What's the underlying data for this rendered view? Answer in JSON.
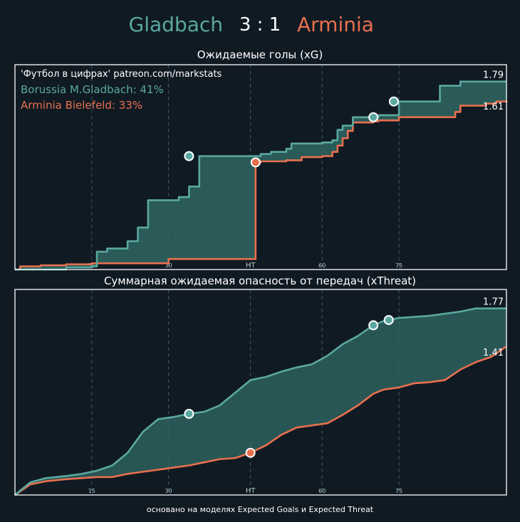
{
  "header": {
    "home_team": "Gladbach",
    "score": "3 : 1",
    "away_team": "Arminia"
  },
  "colors": {
    "background": "#101a23",
    "home": "#5ba8a0",
    "away": "#e8704f",
    "fill": "#2f6762",
    "grid": "#3d5964",
    "frame": "#ffffff"
  },
  "footer": "основано на моделях Expected Goals и Expected Threat",
  "chart_data": [
    {
      "type": "area",
      "title": "Ожидаемые голы (xG)",
      "source_note": "'Футбол в цифрах' patreon.com/markstats",
      "legend": {
        "home": "Borussia M.Gladbach: 41%",
        "away": "Arminia Bielefeld: 33%"
      },
      "xlim": [
        0,
        96
      ],
      "ylim": [
        0,
        1.95
      ],
      "xticks": [
        {
          "value": 15,
          "label": "15"
        },
        {
          "value": 30,
          "label": "30"
        },
        {
          "value": 46,
          "label": "HT"
        },
        {
          "value": 60,
          "label": "60"
        },
        {
          "value": 75,
          "label": "75"
        }
      ],
      "end_labels": {
        "home": "1.79",
        "away": "1.61"
      },
      "step": true,
      "series": [
        {
          "key": "home",
          "x": [
            0,
            10,
            15,
            16,
            17,
            18,
            19,
            22,
            23,
            24,
            25,
            26,
            31,
            32,
            33,
            34,
            35,
            36,
            40,
            45,
            48,
            50,
            53,
            54,
            60,
            62,
            63,
            64,
            65,
            66,
            70,
            71,
            75,
            76,
            82,
            83,
            86,
            87,
            88,
            96
          ],
          "y": [
            0,
            0.02,
            0.03,
            0.17,
            0.17,
            0.2,
            0.2,
            0.27,
            0.27,
            0.4,
            0.4,
            0.66,
            0.66,
            0.69,
            0.69,
            0.79,
            0.79,
            1.08,
            1.08,
            1.08,
            1.1,
            1.12,
            1.15,
            1.2,
            1.21,
            1.23,
            1.33,
            1.37,
            1.37,
            1.45,
            1.45,
            1.47,
            1.6,
            1.6,
            1.6,
            1.75,
            1.75,
            1.79,
            1.79,
            1.79
          ]
        },
        {
          "key": "away",
          "x": [
            0,
            1,
            5,
            10,
            14,
            15,
            30,
            44,
            46,
            47,
            48,
            52,
            53,
            56,
            60,
            62,
            63,
            64,
            65,
            66,
            70,
            71,
            75,
            80,
            85,
            86,
            87,
            92,
            94,
            96
          ],
          "y": [
            0,
            0.03,
            0.04,
            0.05,
            0.05,
            0.06,
            0.1,
            0.1,
            0.1,
            1.02,
            1.03,
            1.03,
            1.04,
            1.07,
            1.08,
            1.12,
            1.18,
            1.25,
            1.32,
            1.4,
            1.41,
            1.42,
            1.45,
            1.45,
            1.45,
            1.5,
            1.56,
            1.58,
            1.6,
            1.61
          ]
        }
      ],
      "goals": [
        {
          "team": "home",
          "x": 34,
          "y": 1.08
        },
        {
          "team": "away",
          "x": 47,
          "y": 1.02
        },
        {
          "team": "home",
          "x": 70,
          "y": 1.45
        },
        {
          "team": "home",
          "x": 74,
          "y": 1.6
        }
      ]
    },
    {
      "type": "area",
      "title": "Суммарная ожидаемая опасность от передач (xThreat)",
      "xlim": [
        0,
        96
      ],
      "ylim": [
        0,
        1.95
      ],
      "xticks": [
        {
          "value": 15,
          "label": "15"
        },
        {
          "value": 30,
          "label": "30"
        },
        {
          "value": 46,
          "label": "HT"
        },
        {
          "value": 60,
          "label": "60"
        },
        {
          "value": 75,
          "label": "75"
        }
      ],
      "end_labels": {
        "home": "1.77",
        "away": "1.41"
      },
      "step": false,
      "series": [
        {
          "key": "home",
          "x": [
            0,
            3,
            6,
            10,
            13,
            16,
            19,
            22,
            25,
            28,
            31,
            34,
            37,
            40,
            43,
            46,
            49,
            52,
            55,
            58,
            61,
            64,
            67,
            70,
            72,
            75,
            78,
            81,
            84,
            87,
            90,
            93,
            96
          ],
          "y": [
            0,
            0.12,
            0.16,
            0.18,
            0.2,
            0.23,
            0.28,
            0.4,
            0.6,
            0.72,
            0.74,
            0.77,
            0.79,
            0.85,
            0.97,
            1.09,
            1.12,
            1.17,
            1.21,
            1.24,
            1.32,
            1.43,
            1.51,
            1.61,
            1.65,
            1.68,
            1.69,
            1.7,
            1.72,
            1.74,
            1.77,
            1.77,
            1.77
          ]
        },
        {
          "key": "away",
          "x": [
            0,
            3,
            6,
            10,
            13,
            16,
            19,
            22,
            25,
            28,
            31,
            34,
            37,
            40,
            43,
            46,
            49,
            52,
            55,
            58,
            61,
            64,
            67,
            70,
            72,
            75,
            78,
            81,
            84,
            87,
            90,
            93,
            96
          ],
          "y": [
            0,
            0.1,
            0.13,
            0.15,
            0.16,
            0.17,
            0.17,
            0.2,
            0.22,
            0.24,
            0.26,
            0.28,
            0.31,
            0.34,
            0.35,
            0.4,
            0.47,
            0.57,
            0.64,
            0.66,
            0.68,
            0.76,
            0.85,
            0.96,
            1.0,
            1.02,
            1.06,
            1.07,
            1.09,
            1.19,
            1.26,
            1.31,
            1.41
          ]
        }
      ],
      "goals": [
        {
          "team": "home",
          "x": 34,
          "y": 0.77
        },
        {
          "team": "away",
          "x": 46,
          "y": 0.4
        },
        {
          "team": "home",
          "x": 70,
          "y": 1.61
        },
        {
          "team": "home",
          "x": 73,
          "y": 1.66
        }
      ]
    }
  ]
}
